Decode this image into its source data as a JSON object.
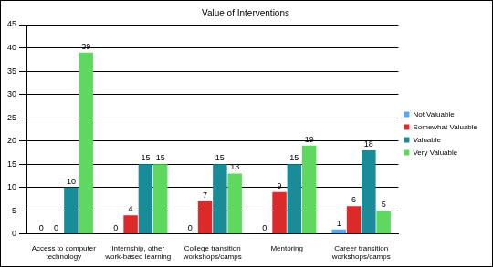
{
  "chart_data": {
    "type": "bar",
    "title": "Value of Interventions",
    "categories": [
      "Access to computer technology",
      "Internship, other work-based learning",
      "College transition workshops/camps",
      "Mentoring",
      "Career transition workshops/camps"
    ],
    "series": [
      {
        "name": "Not Valuable",
        "color": "#5aa7f0",
        "values": [
          0,
          0,
          0,
          0,
          1
        ]
      },
      {
        "name": "Somewhat Valuable",
        "color": "#dc2a2a",
        "values": [
          0,
          4,
          7,
          9,
          6
        ]
      },
      {
        "name": "Valuable",
        "color": "#1a8b98",
        "values": [
          10,
          15,
          15,
          15,
          18
        ]
      },
      {
        "name": "Very Valuable",
        "color": "#5fd85f",
        "values": [
          39,
          15,
          13,
          19,
          5
        ]
      }
    ],
    "ylim": [
      0,
      45
    ],
    "yticks": [
      0,
      5,
      10,
      15,
      20,
      25,
      30,
      35,
      40,
      45
    ],
    "grid": true,
    "legend": "right",
    "data_labels": true
  }
}
